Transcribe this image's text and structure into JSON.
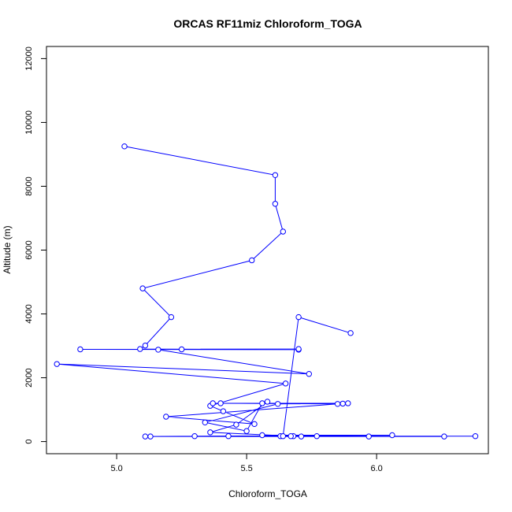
{
  "chart_data": {
    "type": "line",
    "title": "ORCAS RF11miz Chloroform_TOGA",
    "xlabel": "Chloroform_TOGA",
    "ylabel": "Altitude (m)",
    "xlim": [
      4.73,
      6.43
    ],
    "ylim": [
      -380,
      12380
    ],
    "xticks": [
      5.0,
      5.5,
      6.0
    ],
    "xtick_labels": [
      "5.0",
      "5.5",
      "6.0"
    ],
    "yticks": [
      0,
      2000,
      4000,
      6000,
      8000,
      10000,
      12000
    ],
    "ytick_labels": [
      "0",
      "2000",
      "4000",
      "6000",
      "8000",
      "10000",
      "12000"
    ],
    "grid": false,
    "series": [
      {
        "color": "#0000ff",
        "marker": "open-circle",
        "x": [
          5.03,
          5.61,
          5.61,
          5.64,
          5.52,
          5.1,
          5.21,
          5.11,
          5.09,
          5.7,
          4.86,
          5.7,
          5.25,
          5.16,
          5.74,
          4.77,
          5.65,
          5.36,
          5.41,
          5.53,
          5.19,
          5.85,
          5.4,
          5.87,
          5.37,
          5.89,
          5.62,
          5.34,
          5.5,
          5.56,
          5.58,
          5.46,
          5.36,
          5.68,
          5.3,
          5.67,
          5.63,
          5.56,
          6.06,
          5.11,
          6.38,
          5.13,
          5.97,
          5.43,
          5.77,
          5.71,
          6.26,
          5.64,
          5.7,
          5.9
        ],
        "y": [
          9250,
          8350,
          7450,
          6580,
          5680,
          4800,
          3900,
          3010,
          2900,
          2880,
          2890,
          2900,
          2890,
          2880,
          2120,
          2430,
          1820,
          1120,
          950,
          550,
          780,
          1180,
          1200,
          1190,
          1200,
          1200,
          1180,
          600,
          330,
          1200,
          1250,
          530,
          290,
          170,
          170,
          170,
          170,
          200,
          200,
          160,
          170,
          160,
          160,
          170,
          170,
          160,
          160,
          170,
          3900,
          3400
        ]
      }
    ]
  }
}
